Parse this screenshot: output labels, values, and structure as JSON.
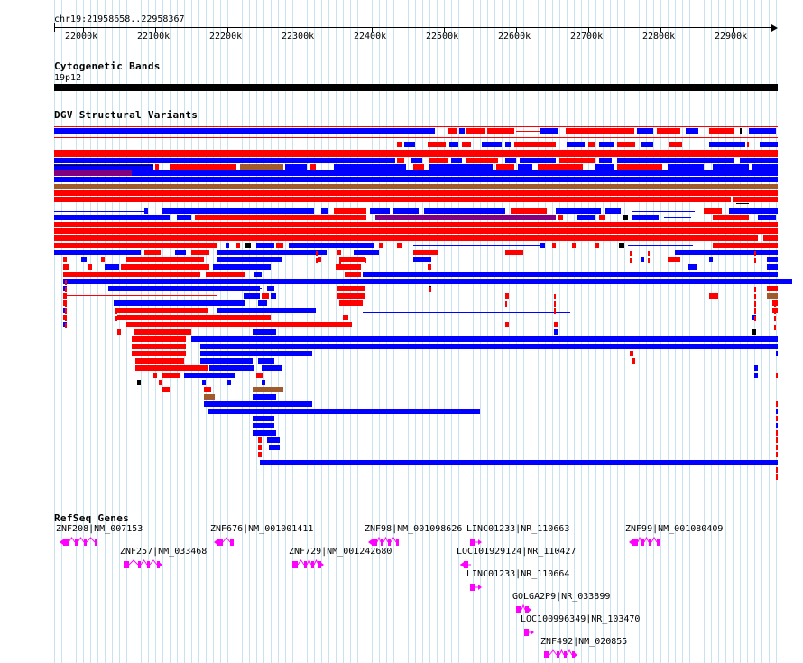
{
  "ruler": {
    "region": "chr19:21958658..22958367",
    "ticks": [
      "22000k",
      "22100k",
      "22200k",
      "22300k",
      "22400k",
      "22500k",
      "22600k",
      "22700k",
      "22800k",
      "22900k"
    ],
    "view_start": 21958658,
    "view_end": 22958367
  },
  "tracks": {
    "cyto": {
      "title": "Cytogenetic Bands",
      "band_label": "19p12"
    },
    "dgv": {
      "title": "DGV Structural Variants"
    },
    "refseq": {
      "title": "RefSeq Genes"
    }
  },
  "colors": {
    "gain": "#ff0000",
    "loss": "#0000ff",
    "inversion": "#a05a2c",
    "complex": "#800080",
    "other": "#000000",
    "gene": "#ff00ff",
    "grid_minor": "#c8e3ef",
    "grid_major": "#8fc0d8"
  },
  "genes": [
    {
      "label": "ZNF208|NM_007153",
      "strand": "-"
    },
    {
      "label": "ZNF257|NM_033468",
      "strand": "+"
    },
    {
      "label": "ZNF676|NM_001001411",
      "strand": "-"
    },
    {
      "label": "ZNF729|NM_001242680",
      "strand": "+"
    },
    {
      "label": "ZNF98|NM_001098626",
      "strand": "-"
    },
    {
      "label": "LINC01233|NR_110663",
      "strand": "+"
    },
    {
      "label": "LOC101929124|NR_110427",
      "strand": "-"
    },
    {
      "label": "LINC01233|NR_110664",
      "strand": "+"
    },
    {
      "label": "GOLGA2P9|NR_033899",
      "strand": "+"
    },
    {
      "label": "LOC100996349|NR_103470",
      "strand": "+"
    },
    {
      "label": "ZNF492|NM_020855",
      "strand": "+"
    },
    {
      "label": "ZNF99|NM_001080409",
      "strand": "-"
    }
  ]
}
